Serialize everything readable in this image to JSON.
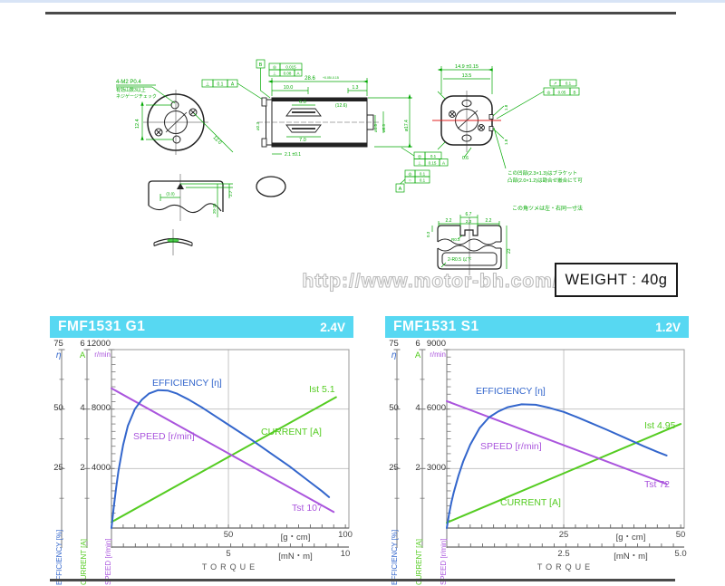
{
  "page": {
    "watermark": "http://www.motor-bh.com/",
    "weight": "WEIGHT : 40g"
  },
  "drawing": {
    "front_thread": "4-M2 P0.4",
    "front_note1": "有効山数3以上",
    "front_note2": "ネジゲージチェック",
    "front_d1": "12.4",
    "front_d2": "12.0",
    "fcf_front_sym": "⊥",
    "fcf_front_val": "0.1",
    "fcf_front_dat": "A",
    "datum_b": "B",
    "datum_a": "A",
    "side_d_len": "28.6",
    "side_d_len_tol": "+0.05/-0.15",
    "side_d_10": "10.0",
    "side_d_13": "1.3",
    "side_d_6": "6.0",
    "side_d_126": "(12.6)",
    "side_d_7": "7.0",
    "side_d_21": "2.1 ±0.1",
    "side_fcf1_sym": "◎",
    "side_fcf1_val": "0.015",
    "side_fcf2_sym": "⊥",
    "side_fcf2_val": "0.08",
    "side_fcf2_dat": "A",
    "side_phi_shaft": "ø1.5",
    "side_phi_boss": "ø8.5",
    "side_phi_body": "ø17.4",
    "side_phi_left": "ø2.3",
    "rear_d_149": "14.9 ±0.15",
    "rear_d_135": "13.5",
    "rear_d_06": "0.6",
    "rear_d_18a": "1.8",
    "rear_d_18b": "1.8",
    "rear_fcf1_sym": "↗",
    "rear_fcf1_val": "0.1",
    "rear_fcf2_sym": "◎",
    "rear_fcf2_val": "0.05",
    "rear_fcf2_dat": "B",
    "rear_note1": "この凹部(2.3×1.3)はブラケット",
    "rear_note2": "凸部(2.0×1.2)は勘合せ嵌合にて可",
    "mid_fcf1_sym": "◎",
    "mid_fcf1_val": "0.1",
    "mid_fcf1b_sym": "⊥",
    "mid_fcf1b_val": "0.15",
    "mid_fcf1b_dat": "A",
    "mid_fcf2_sym": "◎",
    "mid_fcf2_val": "0.1",
    "mid_fcf2b_sym": "○",
    "mid_fcf2b_val": "0.1",
    "br_d_30": "(3.0)",
    "br_d_27": "2.7",
    "br_d_2035": "20-35",
    "hs_d_67": "6.7",
    "hs_d_22a": "2.2",
    "hs_d_23": "2.3",
    "hs_d_22b": "2.2",
    "hs_r03": "R0.3",
    "hs_d_03": "0.3",
    "hs_d_23h": "23",
    "hs_r05": "2-R0.5 以下",
    "hs_note": "この角ツメは左・右同一寸法"
  },
  "charts": [
    {
      "model": "FMF1531 G1",
      "voltage": "2.4V",
      "eff_ticks": [
        "75",
        "50",
        "25"
      ],
      "cur_ticks": [
        "6",
        "4",
        "2"
      ],
      "spd_ticks": [
        "12000",
        "8000",
        "4000"
      ],
      "eff_sym": "η",
      "cur_sym": "A",
      "spd_sym": "r/min",
      "x1_t1": "50",
      "x1_unit": "[g・cm]",
      "x1_t2": "100",
      "x2_t1": "5",
      "x2_unit": "[mN・m]",
      "x2_t2": "10",
      "xlabel": "TORQUE",
      "lbl_eff": "EFFICIENCY [η]",
      "lbl_spd": "SPEED [r/min]",
      "lbl_cur": "CURRENT [A]",
      "lbl_ist": "Ist 5.1",
      "lbl_tst": "Tst 107",
      "rot_eff": "EFFICIENCY [%]",
      "rot_cur": "CURRENT [A]",
      "rot_spd": "SPEED [r/min]"
    },
    {
      "model": "FMF1531 S1",
      "voltage": "1.2V",
      "eff_ticks": [
        "75",
        "50",
        "25"
      ],
      "cur_ticks": [
        "6",
        "4",
        "2"
      ],
      "spd_ticks": [
        "9000",
        "6000",
        "3000"
      ],
      "eff_sym": "η",
      "cur_sym": "A",
      "spd_sym": "r/min",
      "x1_t1": "25",
      "x1_unit": "[g・cm]",
      "x1_t2": "50",
      "x2_t1": "2.5",
      "x2_unit": "[mN・m]",
      "x2_t2": "5.0",
      "xlabel": "TORQUE",
      "lbl_eff": "EFFICIENCY [η]",
      "lbl_spd": "SPEED [r/min]",
      "lbl_cur": "CURRENT [A]",
      "lbl_ist": "Ist 4.95",
      "lbl_tst": "Tst 72",
      "rot_eff": "EFFICIENCY [%]",
      "rot_cur": "CURRENT [A]",
      "rot_spd": "SPEED [r/min]"
    }
  ],
  "chart_data": [
    {
      "type": "line",
      "title": "FMF1531 G1",
      "subtitle": "2.4V",
      "xlabel": "TORQUE",
      "x_units": [
        "g・cm",
        "mN・m"
      ],
      "x_range_gcm": [
        0,
        100
      ],
      "x_range_mNm": [
        0,
        10
      ],
      "axes": {
        "efficiency_pct": {
          "max": 75,
          "ticks": [
            25,
            50,
            75
          ]
        },
        "current_A": {
          "max": 6,
          "ticks": [
            2,
            4,
            6
          ]
        },
        "speed_rpm": {
          "max": 12000,
          "ticks": [
            4000,
            8000,
            12000
          ]
        }
      },
      "stall_torque_gcm": 107,
      "stall_current_A": 5.1,
      "legend_position": "on-curve",
      "grid": true,
      "series": [
        {
          "name": "CURRENT [A]",
          "axis": "current_A",
          "color": "#55cc22",
          "points": [
            [
              0,
              0.2
            ],
            [
              96,
              4.4
            ]
          ]
        },
        {
          "name": "SPEED [r/min]",
          "axis": "speed_rpm",
          "color": "#aa55dd",
          "points": [
            [
              0,
              9400
            ],
            [
              95,
              1080
            ]
          ]
        },
        {
          "name": "EFFICIENCY [η]",
          "axis": "efficiency_pct",
          "color": "#3366cc",
          "points": [
            [
              0,
              0
            ],
            [
              1,
              9
            ],
            [
              2,
              17
            ],
            [
              3,
              24
            ],
            [
              5,
              35
            ],
            [
              7,
              43
            ],
            [
              10,
              50
            ],
            [
              13,
              54
            ],
            [
              16,
              56.5
            ],
            [
              20,
              58
            ],
            [
              24,
              57.8
            ],
            [
              28,
              56.5
            ],
            [
              33,
              54
            ],
            [
              39,
              50.5
            ],
            [
              46,
              46
            ],
            [
              53,
              41.5
            ],
            [
              60,
              37
            ],
            [
              68,
              31.5
            ],
            [
              76,
              26
            ],
            [
              84,
              20
            ],
            [
              90,
              15.5
            ],
            [
              93,
              13
            ]
          ]
        }
      ]
    },
    {
      "type": "line",
      "title": "FMF1531 S1",
      "subtitle": "1.2V",
      "xlabel": "TORQUE",
      "x_units": [
        "g・cm",
        "mN・m"
      ],
      "x_range_gcm": [
        0,
        50
      ],
      "x_range_mNm": [
        0,
        5
      ],
      "axes": {
        "efficiency_pct": {
          "max": 75,
          "ticks": [
            25,
            50,
            75
          ]
        },
        "current_A": {
          "max": 6,
          "ticks": [
            2,
            4,
            6
          ]
        },
        "speed_rpm": {
          "max": 9000,
          "ticks": [
            3000,
            6000,
            9000
          ]
        }
      },
      "stall_torque_gcm": 72,
      "stall_current_A": 4.95,
      "legend_position": "on-curve",
      "grid": true,
      "series": [
        {
          "name": "CURRENT [A]",
          "axis": "current_A",
          "color": "#55cc22",
          "points": [
            [
              0,
              0.18
            ],
            [
              50,
              3.5
            ]
          ]
        },
        {
          "name": "SPEED [r/min]",
          "axis": "speed_rpm",
          "color": "#aa55dd",
          "points": [
            [
              0,
              6400
            ],
            [
              47,
              2220
            ]
          ]
        },
        {
          "name": "EFFICIENCY [η]",
          "axis": "efficiency_pct",
          "color": "#3366cc",
          "points": [
            [
              0,
              0
            ],
            [
              0.5,
              6
            ],
            [
              1,
              11
            ],
            [
              1.5,
              15
            ],
            [
              2.5,
              22
            ],
            [
              3.5,
              28
            ],
            [
              5,
              35
            ],
            [
              7,
              42
            ],
            [
              9,
              46.5
            ],
            [
              11,
              49
            ],
            [
              13,
              50.8
            ],
            [
              16,
              52
            ],
            [
              19,
              51.8
            ],
            [
              22,
              50.5
            ],
            [
              25,
              48.8
            ],
            [
              28,
              46.5
            ],
            [
              31,
              44
            ],
            [
              34,
              41.5
            ],
            [
              38,
              38
            ],
            [
              42,
              34.5
            ],
            [
              45,
              32
            ],
            [
              47,
              30.5
            ]
          ]
        }
      ]
    }
  ]
}
